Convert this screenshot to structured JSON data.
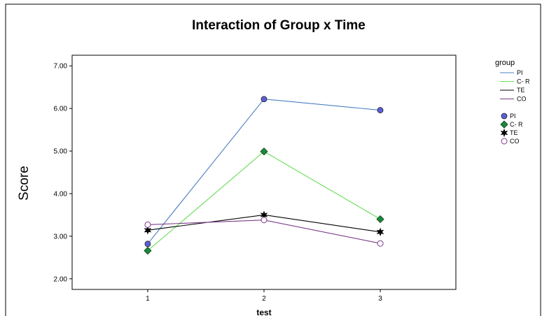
{
  "chart_data": {
    "type": "line",
    "title": "Interaction of Group x Time",
    "xlabel": "test",
    "ylabel": "Score",
    "x": [
      1,
      2,
      3
    ],
    "x_tick_labels": [
      "1",
      "2",
      "3"
    ],
    "xlim": [
      0.35,
      3.65
    ],
    "ylim": [
      1.75,
      7.25
    ],
    "y_ticks": [
      2.0,
      3.0,
      4.0,
      5.0,
      6.0,
      7.0
    ],
    "y_tick_labels": [
      "2.00",
      "3.00",
      "4.00",
      "5.00",
      "6.00",
      "7.00"
    ],
    "grid": false,
    "legend": {
      "title": "group",
      "placement": "right",
      "line_entries": [
        "PI",
        "C- R",
        "TE",
        "CO"
      ],
      "marker_entries": [
        "PI",
        "C- R",
        "TE",
        "CO"
      ]
    },
    "series": [
      {
        "name": "PI",
        "values": [
          2.82,
          6.22,
          5.96
        ],
        "color": "#4a7fc0",
        "marker": "circle",
        "marker_fill": "#5b5fd8"
      },
      {
        "name": "C- R",
        "values": [
          2.66,
          4.99,
          3.4
        ],
        "color": "#66dd55",
        "marker": "diamond",
        "marker_fill": "#1a8a3a"
      },
      {
        "name": "TE",
        "values": [
          3.14,
          3.5,
          3.1
        ],
        "color": "#000000",
        "marker": "star",
        "marker_fill": "#000000"
      },
      {
        "name": "CO",
        "values": [
          3.27,
          3.38,
          2.83
        ],
        "color": "#7a3a8a",
        "marker": "open-circle",
        "marker_fill": "#ffffff"
      }
    ]
  }
}
